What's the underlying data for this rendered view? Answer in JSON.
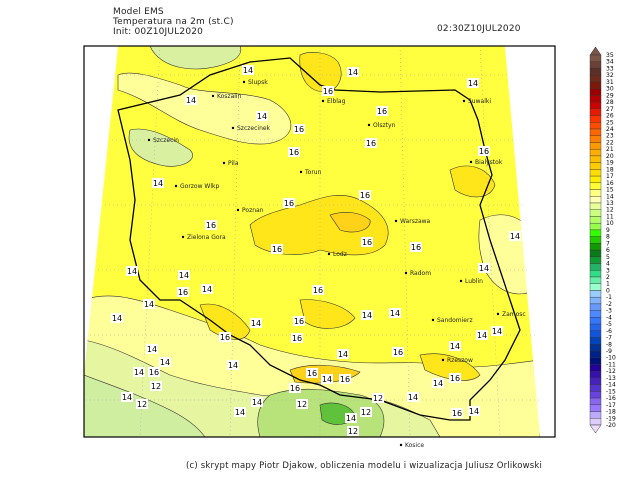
{
  "header": {
    "model": "Model EMS",
    "variable": "Temperatura na 2m (st.C)",
    "init": "Init: 00Z10JUL2020",
    "valid_time": "02:30Z10JUL2020"
  },
  "footer": {
    "credits": "(c) skrypt mapy Piotr Djakow, obliczenia modelu i wizualizacja Juliusz Orlikowski"
  },
  "cities": [
    "Elblag",
    "Olsztyn",
    "Suwalki",
    "Slupsk",
    "Koszalin",
    "Szczecinek",
    "Szczecin",
    "Pila",
    "Torun",
    "Gorzow Wlkp",
    "Bialystok",
    "Poznan",
    "Zielona Gora",
    "Warszawa",
    "Lodz",
    "Radom",
    "Lublin",
    "Sandomierz",
    "Zamosc",
    "Rzeszow",
    "Kosice"
  ],
  "contour_labels": [
    "14",
    "14",
    "14",
    "16",
    "14",
    "16",
    "14",
    "16",
    "16",
    "16",
    "16",
    "14",
    "16",
    "16",
    "16",
    "16",
    "16",
    "14",
    "16",
    "14",
    "14",
    "14",
    "16",
    "14",
    "16",
    "14",
    "14",
    "14",
    "14",
    "14",
    "16",
    "14",
    "14",
    "16",
    "16",
    "14",
    "16",
    "14",
    "14",
    "14",
    "14",
    "16",
    "14",
    "16",
    "12",
    "14",
    "16",
    "14",
    "16",
    "16",
    "14",
    "12",
    "14",
    "14",
    "12",
    "12",
    "12",
    "14",
    "16",
    "14",
    "14",
    "12"
  ],
  "colorbar": {
    "labels": [
      "35",
      "34",
      "33",
      "32",
      "31",
      "30",
      "29",
      "28",
      "27",
      "26",
      "25",
      "24",
      "23",
      "22",
      "21",
      "20",
      "19",
      "18",
      "17",
      "16",
      "15",
      "14",
      "13",
      "12",
      "11",
      "10",
      "9",
      "8",
      "7",
      "6",
      "5",
      "4",
      "3",
      "2",
      "1",
      "0",
      "-1",
      "-2",
      "-3",
      "-4",
      "-5",
      "-6",
      "-7",
      "-8",
      "-9",
      "-10",
      "-11",
      "-12",
      "-13",
      "-14",
      "-15",
      "-16",
      "-17",
      "-18",
      "-19",
      "-20"
    ],
    "colors": [
      "#7a5548",
      "#6b4036",
      "#5c3028",
      "#6e2a1a",
      "#7a1a0a",
      "#990000",
      "#b30000",
      "#cc0000",
      "#e61a00",
      "#ff3300",
      "#ff4d00",
      "#ff6600",
      "#ff8000",
      "#ff9900",
      "#ffad00",
      "#ffbf00",
      "#ffcc00",
      "#ffdd00",
      "#ffee00",
      "#ffff33",
      "#ffff80",
      "#ffffb3",
      "#e6ff99",
      "#ccff80",
      "#b3ff66",
      "#99ff4d",
      "#33ff00",
      "#22cc00",
      "#119900",
      "#0a7a1a",
      "#119933",
      "#22b366",
      "#33dd88",
      "#66eeaa",
      "#99ffcc",
      "#99ccff",
      "#80b3ff",
      "#6699ff",
      "#4d88ff",
      "#3377ff",
      "#2266ee",
      "#1155dd",
      "#0044bb",
      "#003399",
      "#002288",
      "#001177",
      "#220099",
      "#3311aa",
      "#4422bb",
      "#5533cc",
      "#6644dd",
      "#8866ee",
      "#9977ff",
      "#bbaaff",
      "#ddccff"
    ],
    "over_color": "#7a5548",
    "under_color": "#eeddff"
  }
}
